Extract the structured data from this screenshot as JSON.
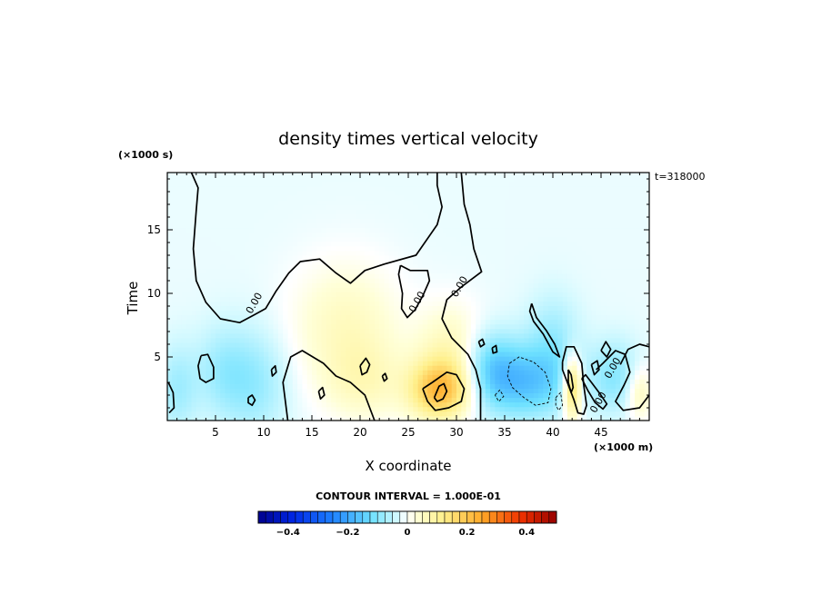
{
  "chart_data": {
    "type": "heatmap",
    "title": "density times vertical velocity",
    "xlabel": "X coordinate",
    "ylabel": "Time",
    "x_units": "(×1000 m)",
    "y_units": "(×1000 s)",
    "time_label": "t=318000",
    "xlim": [
      0,
      50
    ],
    "ylim": [
      0,
      19.5
    ],
    "xticks": [
      5,
      10,
      15,
      20,
      25,
      30,
      35,
      40,
      45
    ],
    "yticks": [
      5,
      10,
      15
    ],
    "contour_interval_label": "CONTOUR INTERVAL = 1.000E-01",
    "contour_label_text": "0.00",
    "colorbar": {
      "vmin": -0.5,
      "vmax": 0.5,
      "ticks": [
        -0.4,
        -0.2,
        0,
        0.2,
        0.4
      ],
      "tick_labels": [
        "−0.4",
        "−0.2",
        "0",
        "0.2",
        "0.4"
      ]
    },
    "field_features": [
      {
        "x": 28.3,
        "y": 2.4,
        "value": 0.22,
        "sx": 2.2,
        "sy": 1.6,
        "sign": "positive"
      },
      {
        "x": 29.5,
        "y": 5.5,
        "value": 0.08,
        "sx": 2.5,
        "sy": 2.5,
        "sign": "positive"
      },
      {
        "x": 18.5,
        "y": 7.5,
        "value": 0.07,
        "sx": 4.0,
        "sy": 3.5,
        "sign": "positive"
      },
      {
        "x": 20.5,
        "y": 3.0,
        "value": 0.06,
        "sx": 3.0,
        "sy": 2.2,
        "sign": "positive"
      },
      {
        "x": 42.0,
        "y": 2.6,
        "value": 0.2,
        "sx": 0.7,
        "sy": 1.7,
        "sign": "positive"
      },
      {
        "x": 49.0,
        "y": 2.2,
        "value": 0.08,
        "sx": 1.0,
        "sy": 1.5,
        "sign": "positive"
      },
      {
        "x": 37.0,
        "y": 3.0,
        "value": -0.14,
        "sx": 3.5,
        "sy": 2.0,
        "sign": "negative"
      },
      {
        "x": 33.5,
        "y": 4.5,
        "value": -0.09,
        "sx": 2.0,
        "sy": 2.0,
        "sign": "negative"
      },
      {
        "x": 40.0,
        "y": 6.5,
        "value": -0.06,
        "sx": 2.0,
        "sy": 2.5,
        "sign": "negative"
      },
      {
        "x": 46.5,
        "y": 3.5,
        "value": -0.08,
        "sx": 1.8,
        "sy": 2.0,
        "sign": "negative"
      },
      {
        "x": 9.0,
        "y": 3.0,
        "value": -0.07,
        "sx": 2.5,
        "sy": 3.0,
        "sign": "negative"
      },
      {
        "x": 1.0,
        "y": 2.5,
        "value": -0.06,
        "sx": 1.5,
        "sy": 2.5,
        "sign": "negative"
      },
      {
        "x": 5.5,
        "y": 4.0,
        "value": -0.05,
        "sx": 2.0,
        "sy": 2.5,
        "sign": "negative"
      }
    ],
    "background_value": -0.015,
    "zero_contours": [
      {
        "dashed": false,
        "points": [
          [
            2.5,
            19.5
          ],
          [
            3.2,
            18.3
          ],
          [
            3.0,
            16.5
          ],
          [
            2.7,
            13.5
          ],
          [
            3.0,
            11.0
          ],
          [
            4.0,
            9.3
          ],
          [
            5.5,
            8.0
          ],
          [
            7.5,
            7.7
          ],
          [
            9.0,
            8.3
          ],
          [
            10.2,
            8.8
          ],
          [
            11.3,
            10.2
          ],
          [
            12.6,
            11.6
          ],
          [
            13.8,
            12.5
          ],
          [
            15.8,
            12.7
          ],
          [
            17.5,
            11.6
          ],
          [
            19.0,
            10.8
          ],
          [
            20.5,
            11.8
          ],
          [
            22.5,
            12.3
          ],
          [
            25.8,
            13.0
          ],
          [
            28.0,
            15.4
          ],
          [
            28.5,
            16.8
          ],
          [
            28.0,
            18.5
          ],
          [
            28.0,
            19.5
          ]
        ]
      },
      {
        "dashed": false,
        "points": [
          [
            12.5,
            0
          ],
          [
            12.0,
            3.0
          ],
          [
            12.8,
            5.0
          ],
          [
            14.0,
            5.5
          ],
          [
            16.2,
            4.5
          ],
          [
            17.5,
            3.5
          ],
          [
            19.0,
            3.0
          ],
          [
            20.5,
            2.0
          ],
          [
            21.5,
            0
          ]
        ]
      },
      {
        "dashed": false,
        "points": [
          [
            30.5,
            19.5
          ],
          [
            30.8,
            17.0
          ],
          [
            31.4,
            15.4
          ],
          [
            31.8,
            13.5
          ],
          [
            32.6,
            11.7
          ],
          [
            30.5,
            10.5
          ],
          [
            29.0,
            9.5
          ],
          [
            28.5,
            8.0
          ],
          [
            29.5,
            6.5
          ],
          [
            31.2,
            5.2
          ],
          [
            32.0,
            4.0
          ],
          [
            32.5,
            2.5
          ],
          [
            32.5,
            0
          ]
        ]
      },
      {
        "dashed": false,
        "points": [
          [
            24.2,
            12.2
          ],
          [
            25.2,
            11.8
          ],
          [
            27.0,
            11.8
          ],
          [
            27.2,
            11.0
          ],
          [
            26.5,
            9.8
          ],
          [
            25.7,
            8.7
          ],
          [
            24.9,
            8.1
          ],
          [
            24.3,
            8.8
          ],
          [
            24.4,
            10.0
          ],
          [
            24.0,
            11.5
          ],
          [
            24.2,
            12.2
          ]
        ]
      },
      {
        "dashed": false,
        "points": [
          [
            26.5,
            2.5
          ],
          [
            27.5,
            3.0
          ],
          [
            29.0,
            3.8
          ],
          [
            30.0,
            3.6
          ],
          [
            30.8,
            2.5
          ],
          [
            30.5,
            1.5
          ],
          [
            29.2,
            1.0
          ],
          [
            27.8,
            0.8
          ],
          [
            27.0,
            1.5
          ],
          [
            26.5,
            2.5
          ]
        ]
      },
      {
        "dashed": false,
        "points": [
          [
            27.7,
            1.8
          ],
          [
            28.2,
            2.7
          ],
          [
            28.7,
            2.9
          ],
          [
            29.0,
            2.3
          ],
          [
            28.6,
            1.7
          ],
          [
            28.0,
            1.5
          ],
          [
            27.7,
            1.8
          ]
        ]
      },
      {
        "dashed": false,
        "points": [
          [
            41.0,
            4.6
          ],
          [
            41.4,
            5.8
          ],
          [
            42.2,
            5.8
          ],
          [
            43.0,
            4.5
          ],
          [
            43.2,
            2.8
          ],
          [
            43.5,
            1.2
          ],
          [
            43.2,
            0.5
          ],
          [
            42.6,
            0.6
          ],
          [
            42.2,
            1.6
          ],
          [
            41.6,
            2.8
          ],
          [
            41.0,
            4.0
          ],
          [
            41.0,
            4.6
          ]
        ]
      },
      {
        "dashed": false,
        "points": [
          [
            41.6,
            4.0
          ],
          [
            41.9,
            3.6
          ],
          [
            42.1,
            2.6
          ],
          [
            41.9,
            2.2
          ],
          [
            41.6,
            3.0
          ],
          [
            41.6,
            4.0
          ]
        ]
      },
      {
        "dashed": false,
        "points": [
          [
            43.0,
            3.3
          ],
          [
            43.6,
            2.4
          ],
          [
            44.4,
            1.4
          ],
          [
            45.2,
            0.9
          ],
          [
            45.6,
            1.3
          ],
          [
            44.9,
            2.1
          ],
          [
            44.0,
            3.0
          ],
          [
            43.4,
            3.6
          ],
          [
            43.0,
            3.3
          ]
        ]
      },
      {
        "dashed": false,
        "points": [
          [
            37.8,
            9.2
          ],
          [
            38.3,
            8.1
          ],
          [
            39.3,
            7.1
          ],
          [
            40.2,
            6.0
          ],
          [
            40.7,
            5.0
          ],
          [
            40.0,
            5.4
          ],
          [
            39.0,
            6.8
          ],
          [
            38.0,
            7.8
          ],
          [
            37.6,
            8.6
          ],
          [
            37.8,
            9.2
          ]
        ]
      },
      {
        "dashed": false,
        "points": [
          [
            3.5,
            5.1
          ],
          [
            4.2,
            5.2
          ],
          [
            4.8,
            4.2
          ],
          [
            4.8,
            3.3
          ],
          [
            4.0,
            3.0
          ],
          [
            3.4,
            3.3
          ],
          [
            3.2,
            4.3
          ],
          [
            3.5,
            5.1
          ]
        ]
      },
      {
        "dashed": false,
        "points": [
          [
            0.1,
            3.0
          ],
          [
            0.6,
            2.2
          ],
          [
            0.7,
            1.0
          ],
          [
            0.2,
            0.6
          ]
        ]
      },
      {
        "dashed": false,
        "points": [
          [
            44.5,
            4.0
          ],
          [
            45.2,
            4.5
          ],
          [
            46.5,
            5.5
          ],
          [
            47.5,
            5.2
          ],
          [
            48.0,
            3.8
          ],
          [
            47.4,
            2.8
          ],
          [
            46.5,
            1.5
          ],
          [
            47.3,
            0.8
          ],
          [
            49.0,
            1.0
          ],
          [
            50.0,
            2.0
          ]
        ]
      },
      {
        "dashed": false,
        "points": [
          [
            45.0,
            5.5
          ],
          [
            45.5,
            6.2
          ],
          [
            46.0,
            5.6
          ],
          [
            45.6,
            5.0
          ],
          [
            45.0,
            5.5
          ]
        ]
      },
      {
        "dashed": false,
        "points": [
          [
            47.0,
            4.4
          ],
          [
            47.8,
            5.6
          ],
          [
            49.0,
            6.0
          ],
          [
            50.0,
            5.8
          ]
        ]
      },
      {
        "dashed": false,
        "points": [
          [
            8.4,
            1.8
          ],
          [
            8.8,
            2.0
          ],
          [
            9.1,
            1.6
          ],
          [
            8.8,
            1.2
          ],
          [
            8.4,
            1.4
          ],
          [
            8.4,
            1.8
          ]
        ]
      },
      {
        "dashed": false,
        "points": [
          [
            10.8,
            4.0
          ],
          [
            11.2,
            4.3
          ],
          [
            11.3,
            3.8
          ],
          [
            10.9,
            3.5
          ],
          [
            10.8,
            4.0
          ]
        ]
      },
      {
        "dashed": false,
        "points": [
          [
            15.7,
            2.3
          ],
          [
            16.1,
            2.6
          ],
          [
            16.3,
            2.0
          ],
          [
            15.9,
            1.7
          ],
          [
            15.7,
            2.3
          ]
        ]
      },
      {
        "dashed": false,
        "points": [
          [
            20.0,
            4.3
          ],
          [
            20.6,
            4.9
          ],
          [
            21.0,
            4.4
          ],
          [
            20.7,
            3.8
          ],
          [
            20.2,
            3.6
          ],
          [
            20.0,
            4.3
          ]
        ]
      },
      {
        "dashed": false,
        "points": [
          [
            22.3,
            3.5
          ],
          [
            22.6,
            3.7
          ],
          [
            22.8,
            3.3
          ],
          [
            22.5,
            3.1
          ],
          [
            22.3,
            3.5
          ]
        ]
      },
      {
        "dashed": false,
        "points": [
          [
            32.3,
            6.2
          ],
          [
            32.7,
            6.4
          ],
          [
            32.9,
            6.0
          ],
          [
            32.5,
            5.8
          ],
          [
            32.3,
            6.2
          ]
        ]
      },
      {
        "dashed": false,
        "points": [
          [
            33.7,
            5.7
          ],
          [
            34.1,
            5.9
          ],
          [
            34.2,
            5.4
          ],
          [
            33.8,
            5.3
          ],
          [
            33.7,
            5.7
          ]
        ]
      },
      {
        "dashed": false,
        "points": [
          [
            44.0,
            4.4
          ],
          [
            44.6,
            4.7
          ],
          [
            44.8,
            4.0
          ],
          [
            44.3,
            3.6
          ],
          [
            44.0,
            4.4
          ]
        ]
      },
      {
        "dashed": true,
        "points": [
          [
            35.5,
            4.5
          ],
          [
            36.5,
            5.0
          ],
          [
            38.0,
            4.6
          ],
          [
            39.2,
            3.8
          ],
          [
            39.8,
            2.5
          ],
          [
            39.5,
            1.4
          ],
          [
            38.2,
            1.2
          ],
          [
            37.0,
            1.8
          ],
          [
            35.8,
            2.6
          ],
          [
            35.3,
            3.5
          ],
          [
            35.5,
            4.5
          ]
        ]
      },
      {
        "dashed": true,
        "points": [
          [
            34.0,
            2.0
          ],
          [
            34.5,
            2.4
          ],
          [
            34.9,
            1.9
          ],
          [
            34.4,
            1.5
          ],
          [
            34.0,
            2.0
          ]
        ]
      },
      {
        "dashed": true,
        "points": [
          [
            40.3,
            1.8
          ],
          [
            40.8,
            2.2
          ],
          [
            41.0,
            1.2
          ],
          [
            40.6,
            0.8
          ],
          [
            40.3,
            1.2
          ],
          [
            40.3,
            1.8
          ]
        ]
      }
    ],
    "contour_label_positions": [
      {
        "x": 9.3,
        "y": 9.1,
        "text": "0.00"
      },
      {
        "x": 26.2,
        "y": 9.2,
        "text": "0.00"
      },
      {
        "x": 30.6,
        "y": 10.4,
        "text": "0.00"
      },
      {
        "x": 46.5,
        "y": 4.0,
        "text": "0.00"
      },
      {
        "x": 45.0,
        "y": 1.3,
        "text": "0.00"
      }
    ]
  }
}
